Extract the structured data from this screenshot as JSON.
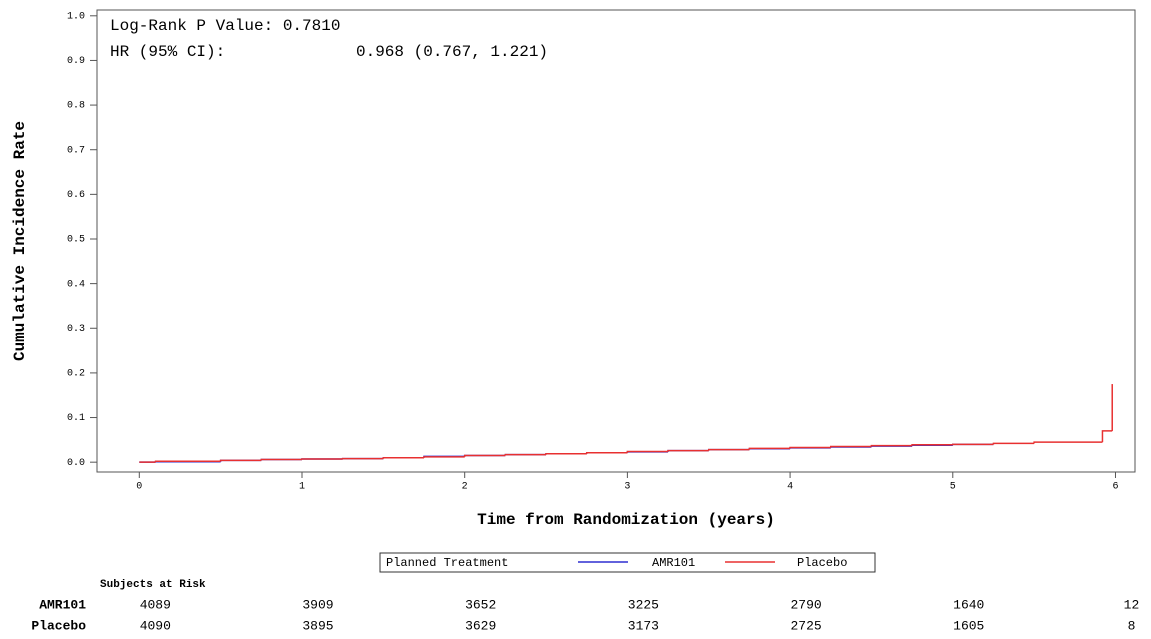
{
  "chart_data": {
    "type": "step",
    "y_label": "Cumulative Incidence Rate",
    "x_label": "Time from Randomization (years)",
    "annotations": [
      "Log-Rank P Value: 0.7810",
      "HR (95% CI):",
      "0.968 (0.767, 1.221)"
    ],
    "legend_title": "Planned Treatment",
    "x": [
      0,
      0.1,
      0.5,
      0.75,
      1,
      1.25,
      1.5,
      1.75,
      2,
      2.25,
      2.5,
      2.75,
      3,
      3.25,
      3.5,
      3.75,
      4,
      4.25,
      4.5,
      4.75,
      5,
      5.25,
      5.5,
      5.92,
      5.98
    ],
    "series": [
      {
        "name": "AMR101",
        "color": "#2f2fd0",
        "values": [
          0,
          0.001,
          0.004,
          0.006,
          0.007,
          0.008,
          0.01,
          0.013,
          0.015,
          0.017,
          0.019,
          0.021,
          0.023,
          0.026,
          0.028,
          0.03,
          0.032,
          0.034,
          0.036,
          0.038,
          0.04,
          0.042,
          null,
          null,
          null
        ]
      },
      {
        "name": "Placebo",
        "color": "#e83030",
        "values": [
          0,
          0.002,
          0.004,
          0.006,
          0.007,
          0.008,
          0.01,
          0.012,
          0.015,
          0.017,
          0.019,
          0.021,
          0.024,
          0.026,
          0.028,
          0.031,
          0.033,
          0.035,
          0.037,
          0.039,
          0.04,
          0.042,
          0.045,
          0.07,
          0.175
        ]
      }
    ],
    "xlim": [
      -0.26,
      6.12
    ],
    "ylim": [
      -0.022,
      1.013
    ],
    "xticks": [
      0,
      1,
      2,
      3,
      4,
      5,
      6
    ],
    "yticks": [
      {
        "value": 0,
        "label": "0.0"
      },
      {
        "value": 0.1,
        "label": "0.1"
      },
      {
        "value": 0.2,
        "label": "0.2"
      },
      {
        "value": 0.3,
        "label": "0.3"
      },
      {
        "value": 0.4,
        "label": "0.4"
      },
      {
        "value": 0.5,
        "label": "0.5"
      },
      {
        "value": 0.6,
        "label": "0.6"
      },
      {
        "value": 0.7,
        "label": "0.7"
      },
      {
        "value": 0.8,
        "label": "0.8"
      },
      {
        "value": 0.9,
        "label": "0.9"
      },
      {
        "value": 1,
        "label": "1.0"
      }
    ],
    "risk_table": {
      "title": "Subjects at Risk",
      "rows": [
        {
          "name": "AMR101",
          "color": "#4a4ae0",
          "values": [
            4089,
            3909,
            3652,
            3225,
            2790,
            1640,
            12
          ]
        },
        {
          "name": "Placebo",
          "color": "#c83a3a",
          "values": [
            4090,
            3895,
            3629,
            3173,
            2725,
            1605,
            8
          ]
        }
      ]
    }
  }
}
